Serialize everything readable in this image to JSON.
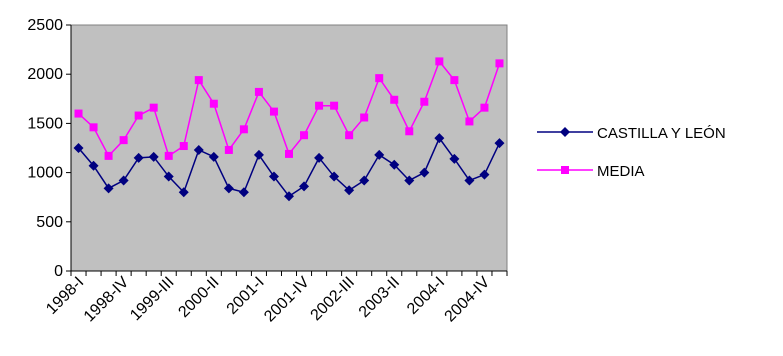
{
  "chart_data": {
    "type": "line",
    "title": "",
    "xlabel": "",
    "ylabel": "",
    "ylim": [
      0,
      2500
    ],
    "y_ticks": [
      0,
      500,
      1000,
      1500,
      2000,
      2500
    ],
    "grid": false,
    "plot_background": "#c0c0c0",
    "legend_position": "right",
    "categories": [
      "1998-I",
      "1998-II",
      "1998-III",
      "1998-IV",
      "1999-I",
      "1999-II",
      "1999-III",
      "1999-IV",
      "2000-I",
      "2000-II",
      "2000-III",
      "2000-IV",
      "2001-I",
      "2001-II",
      "2001-III",
      "2001-IV",
      "2002-I",
      "2002-II",
      "2002-III",
      "2002-IV",
      "2003-I",
      "2003-II",
      "2003-III",
      "2003-IV",
      "2004-I",
      "2004-II",
      "2004-III",
      "2004-IV",
      "2005-I"
    ],
    "x_tick_labels": [
      {
        "index": 0,
        "label": "1998-I"
      },
      {
        "index": 3,
        "label": "1998-IV"
      },
      {
        "index": 6,
        "label": "1999-III"
      },
      {
        "index": 9,
        "label": "2000-II"
      },
      {
        "index": 12,
        "label": "2001-I"
      },
      {
        "index": 15,
        "label": "2001-IV"
      },
      {
        "index": 18,
        "label": "2002-III"
      },
      {
        "index": 21,
        "label": "2003-II"
      },
      {
        "index": 24,
        "label": "2004-I"
      },
      {
        "index": 27,
        "label": "2004-IV"
      }
    ],
    "series": [
      {
        "name": "CASTILLA Y LEÓN",
        "color": "#000080",
        "marker": "diamond",
        "values": [
          1250,
          1070,
          840,
          920,
          1150,
          1160,
          960,
          800,
          1230,
          1160,
          840,
          800,
          1180,
          960,
          760,
          860,
          1150,
          960,
          820,
          920,
          1180,
          1080,
          920,
          1000,
          1350,
          1140,
          920,
          980,
          1300
        ]
      },
      {
        "name": "MEDIA",
        "color": "#ff00ff",
        "marker": "square",
        "values": [
          1600,
          1460,
          1170,
          1330,
          1580,
          1660,
          1170,
          1270,
          1940,
          1700,
          1230,
          1440,
          1820,
          1620,
          1190,
          1380,
          1680,
          1680,
          1380,
          1560,
          1960,
          1740,
          1420,
          1720,
          2130,
          1940,
          1520,
          1660,
          2110
        ]
      }
    ]
  }
}
